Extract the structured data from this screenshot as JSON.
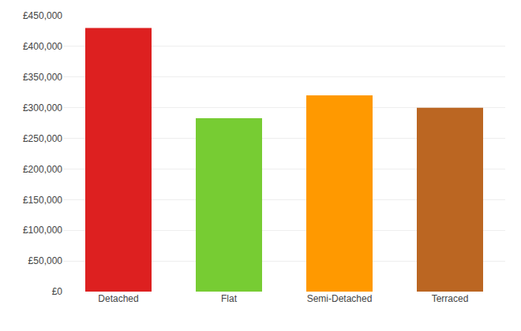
{
  "chart_data": {
    "type": "bar",
    "categories": [
      "Detached",
      "Flat",
      "Semi-Detached",
      "Terraced"
    ],
    "values": [
      430000,
      283000,
      320000,
      300000
    ],
    "colors": [
      "#dd2020",
      "#77cc33",
      "#ff9900",
      "#bb6622"
    ],
    "ylim": [
      0,
      450000
    ],
    "yticks": [
      {
        "value": 0,
        "label": "£0"
      },
      {
        "value": 50000,
        "label": "£50,000"
      },
      {
        "value": 100000,
        "label": "£100,000"
      },
      {
        "value": 150000,
        "label": "£150,000"
      },
      {
        "value": 200000,
        "label": "£200,000"
      },
      {
        "value": 250000,
        "label": "£250,000"
      },
      {
        "value": 300000,
        "label": "£300,000"
      },
      {
        "value": 350000,
        "label": "£350,000"
      },
      {
        "value": 400000,
        "label": "£400,000"
      },
      {
        "value": 450000,
        "label": "£450,000"
      }
    ],
    "grid": true
  }
}
